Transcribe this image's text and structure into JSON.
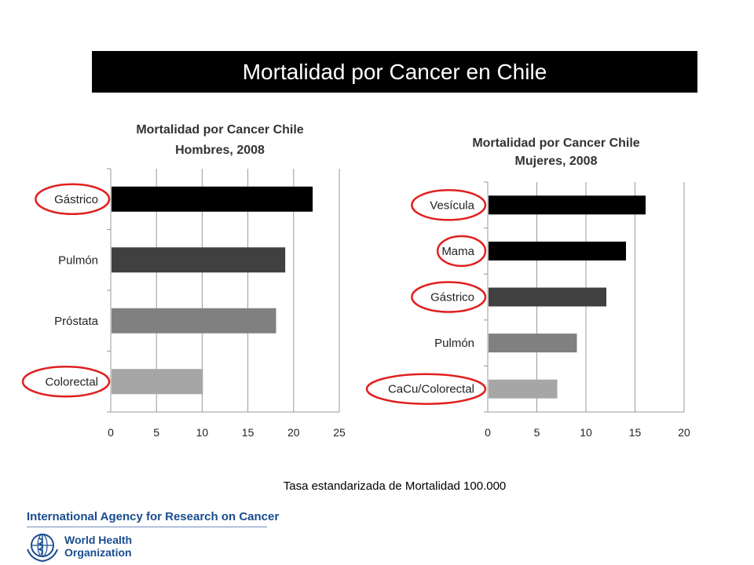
{
  "slide": {
    "title": "Mortalidad por Cancer en Chile",
    "note": "Tasa estandarizada de Mortalidad  100.000",
    "iarc_name": "International Agency for Research on Cancer",
    "who_line1": "World Health",
    "who_line2": "Organization",
    "who_logo_icon": "who-emblem-icon"
  },
  "colors": {
    "highlight_ring": "#e02020",
    "series_shades": [
      "#000000",
      "#404040",
      "#808080",
      "#a6a6a6"
    ]
  },
  "chart_data": [
    {
      "type": "bar",
      "orientation": "horizontal",
      "title_lines": [
        "Mortalidad por Cancer Chile",
        "Hombres, 2008"
      ],
      "categories": [
        "Gástrico",
        "Pulmón",
        "Próstata",
        "Colorectal"
      ],
      "values": [
        22,
        19,
        18,
        10
      ],
      "shades": [
        "#000000",
        "#404040",
        "#808080",
        "#a6a6a6"
      ],
      "highlighted": [
        "Gástrico",
        "Colorectal"
      ],
      "xlim": [
        0,
        25
      ],
      "ticks": [
        0,
        5,
        10,
        15,
        20,
        25
      ],
      "grid": true
    },
    {
      "type": "bar",
      "orientation": "horizontal",
      "title_lines": [
        "Mortalidad por Cancer Chile",
        "Mujeres, 2008"
      ],
      "categories": [
        "Vesícula",
        "Mama",
        "Gástrico",
        "Pulmón",
        "CaCu/Colorectal"
      ],
      "values": [
        16,
        14,
        12,
        9,
        7
      ],
      "shades": [
        "#000000",
        "#000000",
        "#404040",
        "#808080",
        "#a6a6a6"
      ],
      "highlighted": [
        "Vesícula",
        "Mama",
        "Gástrico",
        "CaCu/Colorectal"
      ],
      "xlim": [
        0,
        20
      ],
      "ticks": [
        0,
        5,
        10,
        15,
        20
      ],
      "grid": true
    }
  ]
}
